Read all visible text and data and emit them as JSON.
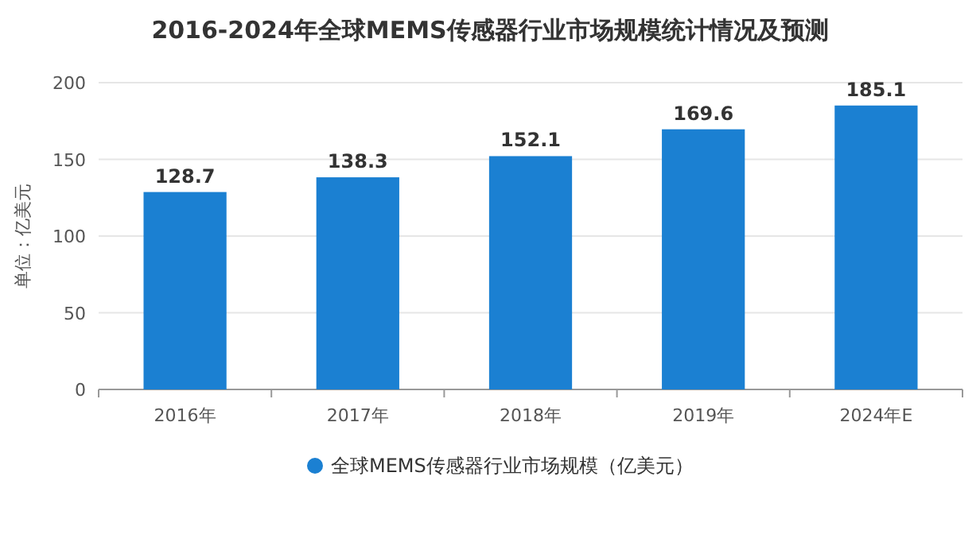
{
  "chart_data": {
    "type": "bar",
    "title": "2016-2024年全球MEMS传感器行业市场规模统计情况及预测",
    "ylabel": "单位：亿美元",
    "categories": [
      "2016年",
      "2017年",
      "2018年",
      "2019年",
      "2024年E"
    ],
    "series": [
      {
        "name": "全球MEMS传感器行业市场规模（亿美元）",
        "color": "#1b80d2",
        "values": [
          128.7,
          138.3,
          152.1,
          169.6,
          185.1
        ]
      }
    ],
    "ylim": [
      0,
      200
    ],
    "yticks": [
      0,
      50,
      100,
      150,
      200
    ],
    "grid": "y",
    "legend": "bottom",
    "data_labels": true
  }
}
